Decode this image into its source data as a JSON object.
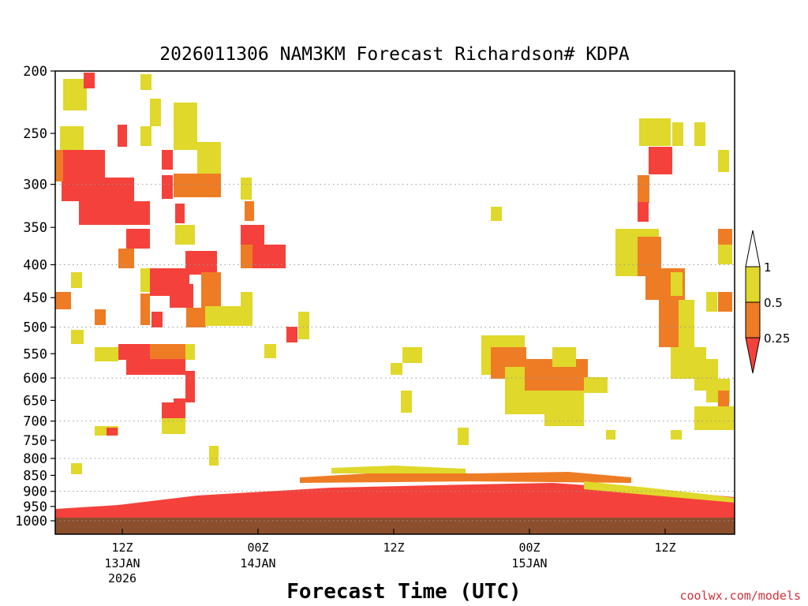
{
  "chart_data": {
    "type": "heatmap",
    "title": "2026011306 NAM3KM Forecast Richardson# KDPA",
    "xlabel": "Forecast Time (UTC)",
    "ylabel": "",
    "credit": "coolwx.com/models",
    "y_axis": {
      "scale": "log-pressure",
      "inverted": true,
      "range": [
        1000,
        200
      ],
      "ticks": [
        200,
        250,
        300,
        350,
        400,
        450,
        500,
        550,
        600,
        650,
        700,
        750,
        800,
        850,
        900,
        950,
        1000
      ],
      "tick_labels": [
        "200",
        "250",
        "300",
        "350",
        "400",
        "450",
        "500",
        "550",
        "600",
        "650",
        "700",
        "750",
        "800",
        "850",
        "900",
        "950",
        "1000"
      ],
      "dotted_gridlines": [
        300,
        400,
        500,
        600,
        700,
        800,
        900,
        1000
      ]
    },
    "x_axis": {
      "ticks": [
        {
          "time": "2026-01-13T12Z",
          "label": "12Z",
          "sub1": "13JAN",
          "sub2": "2026"
        },
        {
          "time": "2026-01-14T00Z",
          "label": "00Z",
          "sub1": "14JAN",
          "sub2": ""
        },
        {
          "time": "2026-01-14T12Z",
          "label": "12Z",
          "sub1": "",
          "sub2": ""
        },
        {
          "time": "2026-01-15T00Z",
          "label": "00Z",
          "sub1": "15JAN",
          "sub2": ""
        },
        {
          "time": "2026-01-15T12Z",
          "label": "12Z",
          "sub1": "",
          "sub2": ""
        }
      ]
    },
    "legend": {
      "placement": "right",
      "bins": [
        {
          "label": "1",
          "range": [
            0.5,
            1
          ],
          "color": "#e0d82a"
        },
        {
          "label": "0.5",
          "range": [
            0.25,
            0.5
          ],
          "color": "#ee7c25"
        },
        {
          "label": "0.25",
          "range": [
            null,
            0.25
          ],
          "color": "#f5413b"
        }
      ],
      "above_color": "#ffffff"
    },
    "ground_color": "#8b4f2e",
    "colors": {
      "low": "#f5413b",
      "mid": "#ee7c25",
      "high": "#e0d82a"
    }
  }
}
